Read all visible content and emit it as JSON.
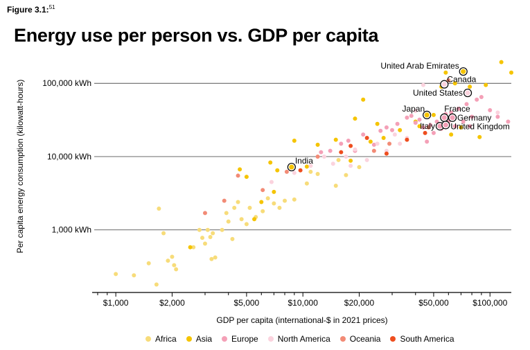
{
  "figure_label": "Figure 3.1:",
  "figure_superscript": "51",
  "chart_data": {
    "type": "scatter",
    "title": "Energy use per person vs. GDP per capita",
    "xlabel": "GDP per capita (international-$ in 2021 prices)",
    "ylabel": "Per capita energy consumption (kilowatt-hours)",
    "x_scale": "log",
    "y_scale": "log",
    "xlim": [
      780,
      130000
    ],
    "ylim": [
      140,
      230000
    ],
    "x_ticks": [
      {
        "value": 1000,
        "label": "$1,000"
      },
      {
        "value": 2000,
        "label": "$2,000"
      },
      {
        "value": 5000,
        "label": "$5,000"
      },
      {
        "value": 10000,
        "label": "$10,000"
      },
      {
        "value": 20000,
        "label": "$20,000"
      },
      {
        "value": 50000,
        "label": "$50,000"
      },
      {
        "value": 100000,
        "label": "$100,000"
      }
    ],
    "y_ticks": [
      {
        "value": 1000,
        "label": "1,000 kWh"
      },
      {
        "value": 10000,
        "label": "10,000 kWh"
      },
      {
        "value": 100000,
        "label": "100,000 kWh"
      }
    ],
    "grid": "horizontal",
    "legend_position": "bottom",
    "series": [
      {
        "name": "Africa",
        "color": "#f7dc7a",
        "points": [
          [
            1000,
            250
          ],
          [
            1250,
            240
          ],
          [
            1500,
            350
          ],
          [
            1650,
            180
          ],
          [
            1700,
            1950
          ],
          [
            1800,
            900
          ],
          [
            1900,
            380
          ],
          [
            2000,
            430
          ],
          [
            2050,
            330
          ],
          [
            2100,
            290
          ],
          [
            2600,
            580
          ],
          [
            2800,
            1000
          ],
          [
            2900,
            780
          ],
          [
            3000,
            650
          ],
          [
            3100,
            1000
          ],
          [
            3200,
            800
          ],
          [
            3250,
            400
          ],
          [
            3300,
            900
          ],
          [
            3400,
            420
          ],
          [
            3700,
            1000
          ],
          [
            3900,
            1700
          ],
          [
            4000,
            1300
          ],
          [
            4200,
            750
          ],
          [
            4300,
            2000
          ],
          [
            4500,
            2400
          ],
          [
            4700,
            1400
          ],
          [
            5000,
            1200
          ],
          [
            5200,
            2000
          ],
          [
            5600,
            1500
          ],
          [
            6100,
            1800
          ],
          [
            6500,
            2700
          ],
          [
            7000,
            2300
          ],
          [
            7500,
            2000
          ],
          [
            8000,
            2500
          ],
          [
            9000,
            2600
          ],
          [
            10500,
            4300
          ],
          [
            11000,
            6200
          ],
          [
            12000,
            5800
          ],
          [
            15000,
            4000
          ],
          [
            17000,
            5600
          ],
          [
            20000,
            7200
          ],
          [
            15500,
            9000
          ]
        ]
      },
      {
        "name": "Asia",
        "color": "#f5c400",
        "points": [
          [
            2500,
            580
          ],
          [
            4600,
            6700
          ],
          [
            5000,
            5300
          ],
          [
            5500,
            1400
          ],
          [
            6000,
            2400
          ],
          [
            6700,
            8300
          ],
          [
            7000,
            3300
          ],
          [
            7300,
            6500
          ],
          [
            9000,
            16500
          ],
          [
            10500,
            7300
          ],
          [
            12000,
            14500
          ],
          [
            15000,
            17000
          ],
          [
            18000,
            8800
          ],
          [
            19000,
            33000
          ],
          [
            21000,
            60000
          ],
          [
            23000,
            16000
          ],
          [
            25000,
            28000
          ],
          [
            27000,
            18000
          ],
          [
            33000,
            23000
          ],
          [
            40000,
            30000
          ],
          [
            42000,
            26000
          ],
          [
            50000,
            37000
          ],
          [
            55000,
            90000
          ],
          [
            58000,
            140000
          ],
          [
            62000,
            20000
          ],
          [
            65000,
            100000
          ],
          [
            70000,
            25000
          ],
          [
            72000,
            145000
          ],
          [
            78000,
            90000
          ],
          [
            88000,
            18500
          ],
          [
            95000,
            95000
          ],
          [
            115000,
            195000
          ],
          [
            130000,
            140000
          ],
          [
            46000,
            38000
          ]
        ]
      },
      {
        "name": "Europe",
        "color": "#f4a0b7",
        "points": [
          [
            12500,
            11500
          ],
          [
            14000,
            12000
          ],
          [
            16000,
            15000
          ],
          [
            17500,
            16500
          ],
          [
            19000,
            12000
          ],
          [
            21000,
            20000
          ],
          [
            24000,
            14500
          ],
          [
            26000,
            22500
          ],
          [
            28000,
            25000
          ],
          [
            30000,
            23000
          ],
          [
            32000,
            28000
          ],
          [
            36000,
            34000
          ],
          [
            38000,
            36000
          ],
          [
            40000,
            29000
          ],
          [
            42000,
            32000
          ],
          [
            44000,
            25000
          ],
          [
            46000,
            16000
          ],
          [
            48000,
            27000
          ],
          [
            50000,
            21000
          ],
          [
            52000,
            30000
          ],
          [
            55000,
            24000
          ],
          [
            58000,
            38000
          ],
          [
            60000,
            30000
          ],
          [
            62000,
            40000
          ],
          [
            65000,
            26000
          ],
          [
            68000,
            45000
          ],
          [
            72000,
            30000
          ],
          [
            75000,
            52000
          ],
          [
            80000,
            35000
          ],
          [
            85000,
            60000
          ],
          [
            90000,
            65000
          ],
          [
            100000,
            43000
          ],
          [
            110000,
            35000
          ],
          [
            125000,
            30000
          ],
          [
            135000,
            45000
          ],
          [
            145000,
            50000
          ],
          [
            78000,
            26000
          ]
        ]
      },
      {
        "name": "North America",
        "color": "#fbd3de",
        "points": [
          [
            6800,
            4500
          ],
          [
            9000,
            6000
          ],
          [
            11000,
            7500
          ],
          [
            13000,
            10000
          ],
          [
            14500,
            8000
          ],
          [
            17000,
            10000
          ],
          [
            19000,
            12500
          ],
          [
            22000,
            9000
          ],
          [
            25000,
            15000
          ],
          [
            28000,
            12000
          ],
          [
            31000,
            20000
          ],
          [
            33000,
            15000
          ],
          [
            36000,
            18000
          ],
          [
            40000,
            42000
          ],
          [
            44000,
            95000
          ],
          [
            110000,
            40000
          ],
          [
            76000,
            75000
          ],
          [
            18000,
            7500
          ]
        ]
      },
      {
        "name": "Oceania",
        "color": "#f28b76",
        "points": [
          [
            3000,
            1700
          ],
          [
            3800,
            2500
          ],
          [
            4500,
            5500
          ],
          [
            6100,
            3500
          ],
          [
            8200,
            6200
          ],
          [
            12000,
            10000
          ],
          [
            24000,
            12000
          ],
          [
            29000,
            15000
          ],
          [
            47000,
            25000
          ],
          [
            60000,
            110000
          ]
        ]
      },
      {
        "name": "South America",
        "color": "#ee4e1f",
        "points": [
          [
            9700,
            6500
          ],
          [
            16000,
            11500
          ],
          [
            18000,
            14000
          ],
          [
            22000,
            18000
          ],
          [
            28000,
            11000
          ],
          [
            36000,
            17000
          ],
          [
            45000,
            21000
          ],
          [
            57000,
            34000
          ]
        ]
      }
    ],
    "annotations": [
      {
        "label": "United Arab Emirates",
        "x": 72000,
        "y": 145000,
        "color": "#f5c400",
        "anchor": "end",
        "dx": -6,
        "dy": -4
      },
      {
        "label": "Canada",
        "x": 57000,
        "y": 97000,
        "color": "#fbd3de",
        "anchor": "start",
        "dx": 4,
        "dy": -3
      },
      {
        "label": "United States",
        "x": 76000,
        "y": 74000,
        "color": "#fbd3de",
        "anchor": "end",
        "dx": -7,
        "dy": 4
      },
      {
        "label": "Japan",
        "x": 46000,
        "y": 37000,
        "color": "#f5c400",
        "anchor": "end",
        "dx": -3,
        "dy": -5
      },
      {
        "label": "France",
        "x": 57000,
        "y": 34000,
        "color": "#f4a0b7",
        "anchor": "start",
        "dx": 0,
        "dy": -9
      },
      {
        "label": "Germany",
        "x": 63000,
        "y": 34000,
        "color": "#f4a0b7",
        "anchor": "start",
        "dx": 7,
        "dy": 4
      },
      {
        "label": "Italy",
        "x": 54000,
        "y": 26000,
        "color": "#f4a0b7",
        "anchor": "end",
        "dx": -7,
        "dy": 4
      },
      {
        "label": "United Kingdom",
        "x": 58000,
        "y": 27000,
        "color": "#f4a0b7",
        "anchor": "start",
        "dx": 7,
        "dy": 6
      },
      {
        "label": "India",
        "x": 8700,
        "y": 7200,
        "color": "#f5c400",
        "anchor": "start",
        "dx": 5,
        "dy": -5
      }
    ]
  }
}
